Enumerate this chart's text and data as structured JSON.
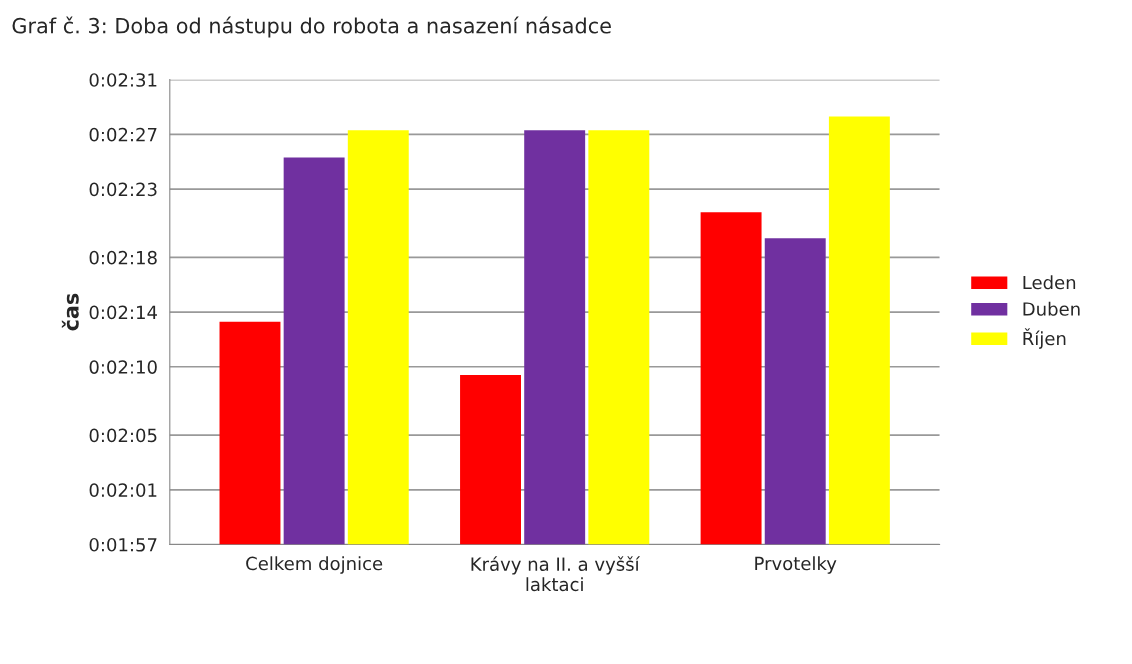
{
  "chart_data": {
    "type": "bar",
    "title": "Graf č. 3: Doba od nástupu do robota a nasazení násadce",
    "ylabel": "čas",
    "categories": [
      "Celkem dojnice",
      "Krávy na II. a vyšší\nlaktaci",
      "Prvotelky"
    ],
    "series": [
      {
        "name": "Leden",
        "color": "#ff0000",
        "values": [
          133.3,
          129.4,
          141.3
        ]
      },
      {
        "name": "Duben",
        "color": "#7030a0",
        "values": [
          145.3,
          147.3,
          139.4
        ]
      },
      {
        "name": "Říjen",
        "color": "#ffff00",
        "values": [
          147.3,
          147.3,
          148.3
        ]
      }
    ],
    "ylim": [
      117,
      151
    ],
    "yticks": [
      {
        "value": 117,
        "label": "0:01:57"
      },
      {
        "value": 121,
        "label": "0:02:01"
      },
      {
        "value": 125,
        "label": "0:02:05"
      },
      {
        "value": 130,
        "label": "0:02:10"
      },
      {
        "value": 134,
        "label": "0:02:14"
      },
      {
        "value": 138,
        "label": "0:02:18"
      },
      {
        "value": 143,
        "label": "0:02:23"
      },
      {
        "value": 147,
        "label": "0:02:27"
      },
      {
        "value": 151,
        "label": "0:02:31"
      }
    ],
    "grid": "y",
    "legend": "right"
  }
}
